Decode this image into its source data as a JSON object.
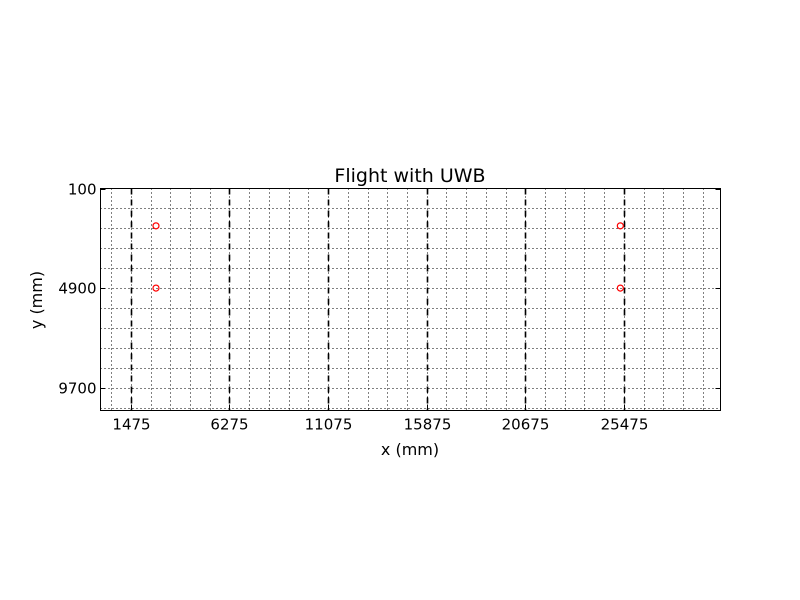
{
  "chart_data": {
    "type": "scatter",
    "title": "Flight with UWB",
    "xlabel": "x (mm)",
    "ylabel": "y (mm)",
    "xlim": [
      0,
      30175
    ],
    "ylim": [
      10800,
      100
    ],
    "y_inverted": true,
    "x_ticks": [
      1475,
      6275,
      11075,
      15875,
      20675,
      25475
    ],
    "x_tick_labels": [
      "1475",
      "6275",
      "11075",
      "15875",
      "20675",
      "25475"
    ],
    "y_ticks": [
      100,
      4900,
      9700
    ],
    "y_tick_labels": [
      "100",
      "4900",
      "9700"
    ],
    "grid": "dotted minor grid with dashed major vertical lines",
    "series": [
      {
        "marker": "open-circle",
        "color": "#ff0000",
        "points": [
          {
            "x": 2700,
            "y": 1900
          },
          {
            "x": 2700,
            "y": 4900
          },
          {
            "x": 25300,
            "y": 1900
          },
          {
            "x": 25300,
            "y": 4900
          }
        ]
      }
    ]
  }
}
